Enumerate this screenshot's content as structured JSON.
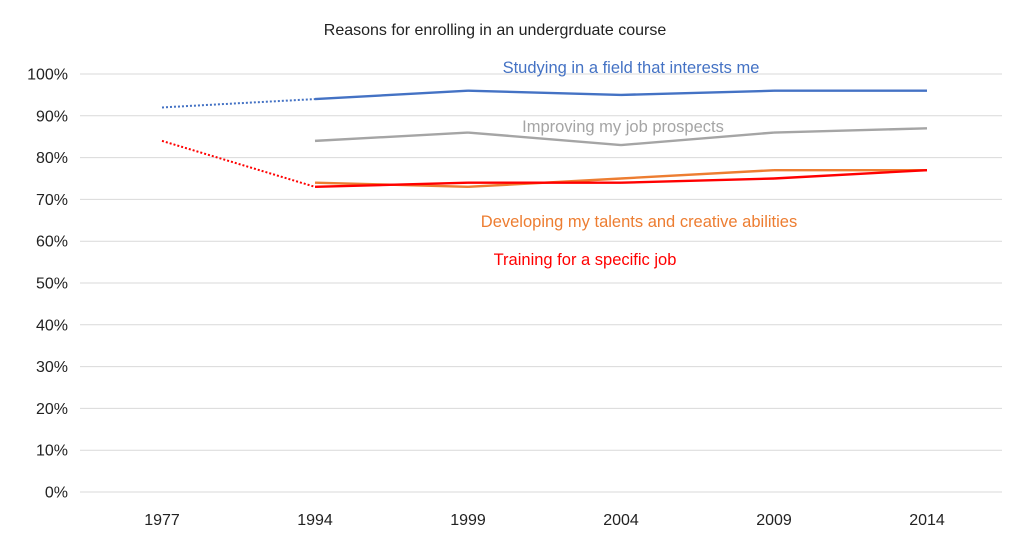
{
  "chart_data": {
    "type": "line",
    "title": "Reasons for enrolling in an undergrduate course",
    "categories": [
      "1977",
      "1994",
      "1999",
      "2004",
      "2009",
      "2014"
    ],
    "ylim": [
      0,
      100
    ],
    "yticks": [
      0,
      10,
      20,
      30,
      40,
      50,
      60,
      70,
      80,
      90,
      100
    ],
    "ytick_labels": [
      "0%",
      "10%",
      "20%",
      "30%",
      "40%",
      "50%",
      "60%",
      "70%",
      "80%",
      "90%",
      "100%"
    ],
    "grid": true,
    "legend": "inline labels",
    "series": [
      {
        "name": "Studying in a field that interests me",
        "color": "#4472c4",
        "values": [
          92,
          94,
          96,
          95,
          96,
          96
        ],
        "dotted_segment": [
          0,
          1
        ]
      },
      {
        "name": "Improving my job prospects",
        "color": "#a5a5a5",
        "values": [
          null,
          84,
          86,
          83,
          86,
          87
        ],
        "dotted_segment": null
      },
      {
        "name": "Developing my talents and creative abilities",
        "color": "#ed7d31",
        "values": [
          null,
          74,
          73,
          75,
          77,
          77
        ],
        "dotted_segment": null
      },
      {
        "name": "Training for a specific job",
        "color": "#ff0000",
        "values": [
          84,
          73,
          74,
          74,
          75,
          77
        ],
        "dotted_segment": [
          0,
          1
        ]
      }
    ]
  }
}
